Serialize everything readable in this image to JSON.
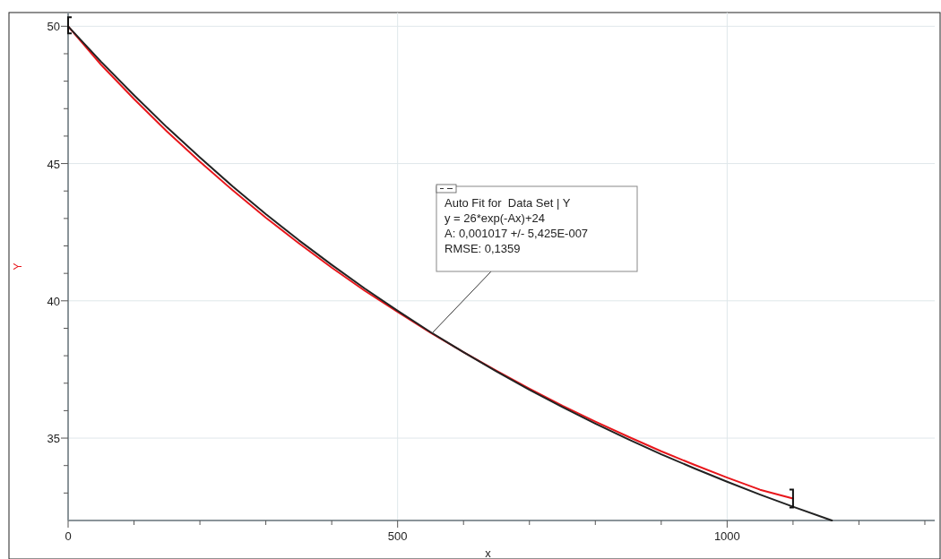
{
  "chart_data": {
    "type": "line",
    "xlabel": "x",
    "ylabel": "Y",
    "xlim": [
      0,
      1315
    ],
    "ylim": [
      32,
      50.5
    ],
    "xticks": [
      0,
      {
        "value": 100,
        "label": null
      },
      {
        "value": 200,
        "label": null
      },
      {
        "value": 300,
        "label": null
      },
      {
        "value": 400,
        "label": null
      },
      500,
      {
        "value": 600,
        "label": null
      },
      {
        "value": 700,
        "label": null
      },
      {
        "value": 800,
        "label": null
      },
      {
        "value": 900,
        "label": null
      },
      1000,
      {
        "value": 1100,
        "label": null
      },
      {
        "value": 1200,
        "label": null
      },
      {
        "value": 1300,
        "label": null
      }
    ],
    "yticks": [
      {
        "value": 33,
        "label": null
      },
      {
        "value": 34,
        "label": null
      },
      35,
      {
        "value": 36,
        "label": null
      },
      {
        "value": 37,
        "label": null
      },
      {
        "value": 38,
        "label": null
      },
      {
        "value": 39,
        "label": null
      },
      40,
      {
        "value": 41,
        "label": null
      },
      {
        "value": 42,
        "label": null
      },
      {
        "value": 43,
        "label": null
      },
      {
        "value": 44,
        "label": null
      },
      45,
      {
        "value": 46,
        "label": null
      },
      {
        "value": 47,
        "label": null
      },
      {
        "value": 48,
        "label": null
      },
      {
        "value": 49,
        "label": null
      },
      50
    ],
    "grid": true,
    "marker": "none",
    "line_style": "solid",
    "series": [
      {
        "color": "#e8161b",
        "x": [
          0,
          50,
          100,
          150,
          200,
          250,
          300,
          350,
          400,
          450,
          500,
          550,
          600,
          650,
          700,
          750,
          800,
          850,
          900,
          950,
          1000,
          1050,
          1100
        ],
        "values": [
          50,
          48.6,
          47.35,
          46.17,
          45.07,
          44.02,
          43.03,
          42.1,
          41.21,
          40.37,
          39.6,
          38.84,
          38.13,
          37.45,
          36.8,
          36.18,
          35.6,
          35.05,
          34.52,
          34.03,
          33.56,
          33.12,
          32.8
        ]
      },
      {
        "color": "#222222",
        "x": [
          0,
          50,
          100,
          150,
          200,
          250,
          300,
          350,
          400,
          450,
          500,
          550,
          600,
          650,
          700,
          750,
          800,
          850,
          900,
          950,
          1000,
          1050,
          1100,
          1159
        ],
        "values": [
          50,
          48.71,
          47.49,
          46.32,
          45.22,
          44.16,
          43.16,
          42.21,
          41.31,
          40.45,
          39.64,
          38.86,
          38.13,
          37.43,
          36.76,
          36.13,
          35.53,
          34.96,
          34.41,
          33.9,
          33.41,
          32.94,
          32.5,
          32
        ]
      }
    ],
    "annotations": [
      "Auto Fit for  Data Set | Y",
      "y = 26*exp(-Ax)+24",
      "A: 0,001017 +/- 5,425E-007",
      "RMSE: 0,1359"
    ]
  }
}
